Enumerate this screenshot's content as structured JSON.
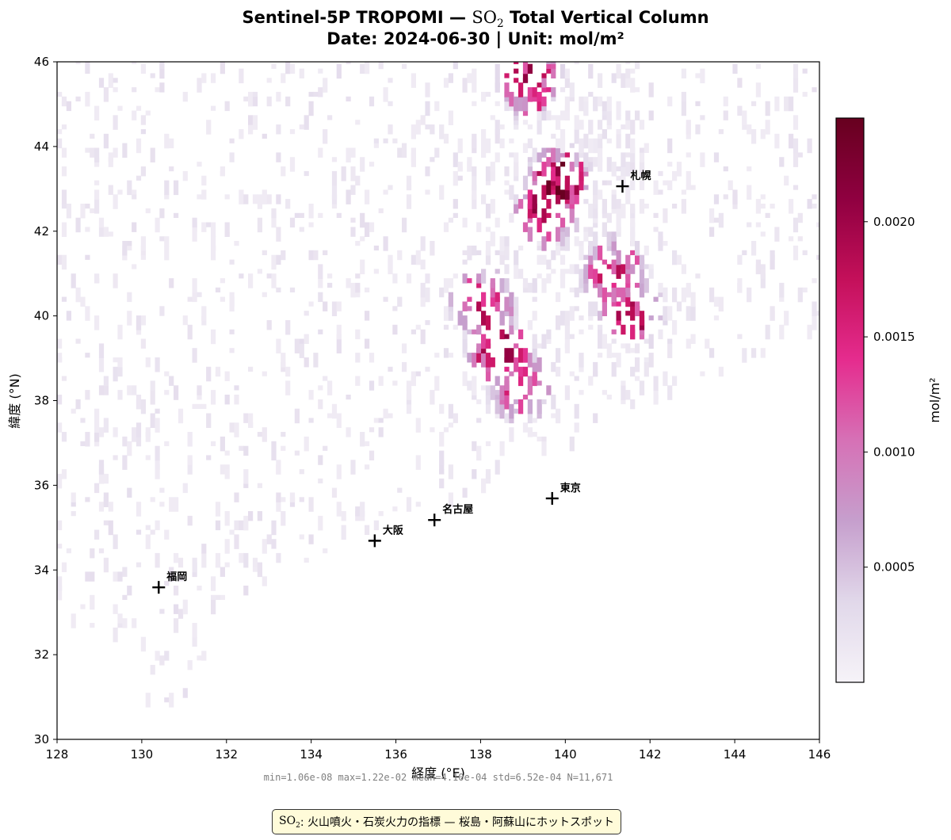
{
  "title": {
    "line1_prefix": "Sentinel-5P TROPOMI —",
    "so2_main": "SO",
    "so2_sub": "2",
    "line1_suffix": "Total Vertical Column",
    "line2": "Date: 2024-06-30  |  Unit: mol/m²"
  },
  "colors": {
    "colormap": [
      "#f6f3f8",
      "#e1d8ea",
      "#c69fcd",
      "#d671b6",
      "#e52c8e",
      "#c4105a",
      "#8f0040",
      "#67001f"
    ],
    "axis": "#000000",
    "stats_text": "#808080",
    "note_bg": "#fffbd9",
    "note_border": "#333333"
  },
  "chart_data": {
    "type": "heatmap",
    "title": "Sentinel-5P TROPOMI — SO2 Total Vertical Column",
    "subtitle": "Date: 2024-06-30  |  Unit: mol/m²",
    "xlabel": "経度 (°E)",
    "ylabel": "緯度 (°N)",
    "xlim": [
      128,
      146
    ],
    "ylim": [
      30,
      46
    ],
    "xticks": [
      "128",
      "130",
      "132",
      "134",
      "136",
      "138",
      "140",
      "142",
      "144",
      "146"
    ],
    "yticks": [
      "30",
      "32",
      "34",
      "36",
      "38",
      "40",
      "42",
      "44",
      "46"
    ],
    "colorbar": {
      "label": "mol/m²",
      "range": [
        0.0,
        0.00245
      ],
      "ticks": [
        "0.0005",
        "0.0010",
        "0.0015",
        "0.0020"
      ],
      "tick_values": [
        0.0005,
        0.001,
        0.0015,
        0.002
      ]
    },
    "cities": [
      {
        "name": "札幌",
        "lon": 141.35,
        "lat": 43.06
      },
      {
        "name": "東京",
        "lon": 139.69,
        "lat": 35.69
      },
      {
        "name": "名古屋",
        "lon": 136.91,
        "lat": 35.18
      },
      {
        "name": "大阪",
        "lon": 135.5,
        "lat": 34.69
      },
      {
        "name": "福岡",
        "lon": 130.4,
        "lat": 33.59
      }
    ],
    "hotspots": [
      {
        "lon": 139.1,
        "lat": 45.6,
        "value": 0.0022
      },
      {
        "lon": 139.8,
        "lat": 43.2,
        "value": 0.0024
      },
      {
        "lon": 139.5,
        "lat": 42.5,
        "value": 0.0021
      },
      {
        "lon": 141.5,
        "lat": 40.1,
        "value": 0.002
      },
      {
        "lon": 138.4,
        "lat": 39.2,
        "value": 0.0022
      },
      {
        "lon": 138.0,
        "lat": 40.3,
        "value": 0.0019
      },
      {
        "lon": 141.1,
        "lat": 41.1,
        "value": 0.0018
      },
      {
        "lon": 138.9,
        "lat": 38.4,
        "value": 0.0016
      }
    ],
    "stats": {
      "min": "1.06e-08",
      "max": "1.22e-02",
      "mean": "4.10e-04",
      "std": "6.52e-04",
      "N": "11,671"
    }
  },
  "stats_line": "min=1.06e-08  max=1.22e-02  mean=4.10e-04  std=6.52e-04  N=11,671",
  "note": {
    "so2_main": "SO",
    "so2_sub": "2",
    "text": ": 火山噴火・石炭火力の指標 — 桜島・阿蘇山にホットスポット"
  }
}
